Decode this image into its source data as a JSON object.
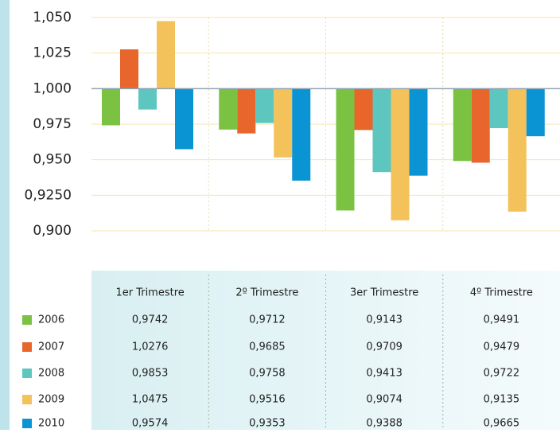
{
  "chart_data": {
    "type": "bar",
    "categories": [
      "1er Trimestre",
      "2º Trimestre",
      "3er Trimestre",
      "4º Trimestre"
    ],
    "series": [
      {
        "name": "2006",
        "color": "#7cc242",
        "values": [
          0.9742,
          0.9712,
          0.9143,
          0.9491
        ],
        "value_labels": [
          "0,9742",
          "0,9712",
          "0,9143",
          "0,9491"
        ]
      },
      {
        "name": "2007",
        "color": "#e8652b",
        "values": [
          1.0276,
          0.9685,
          0.9709,
          0.9479
        ],
        "value_labels": [
          "1,0276",
          "0,9685",
          "0,9709",
          "0,9479"
        ]
      },
      {
        "name": "2008",
        "color": "#5cc6bf",
        "values": [
          0.9853,
          0.9758,
          0.9413,
          0.9722
        ],
        "value_labels": [
          "0,9853",
          "0,9758",
          "0,9413",
          "0,9722"
        ]
      },
      {
        "name": "2009",
        "color": "#f4c25b",
        "values": [
          1.0475,
          0.9516,
          0.9074,
          0.9135
        ],
        "value_labels": [
          "1,0475",
          "0,9516",
          "0,9074",
          "0,9135"
        ]
      },
      {
        "name": "2010",
        "color": "#0a94d4",
        "values": [
          0.9574,
          0.9353,
          0.9388,
          0.9665
        ],
        "value_labels": [
          "0,9574",
          "0,9353",
          "0,9388",
          "0,9665"
        ]
      }
    ],
    "baseline": 1,
    "ylim": [
      0.9,
      1.05
    ],
    "yticks": [
      {
        "value": 0.9,
        "label": "0,900"
      },
      {
        "value": 0.925,
        "label": "0,9250"
      },
      {
        "value": 0.95,
        "label": "0,950"
      },
      {
        "value": 0.975,
        "label": "0,975"
      },
      {
        "value": 1,
        "label": "1,000"
      },
      {
        "value": 1.025,
        "label": "1,025"
      },
      {
        "value": 1.05,
        "label": "1,050"
      }
    ],
    "grid": true
  }
}
